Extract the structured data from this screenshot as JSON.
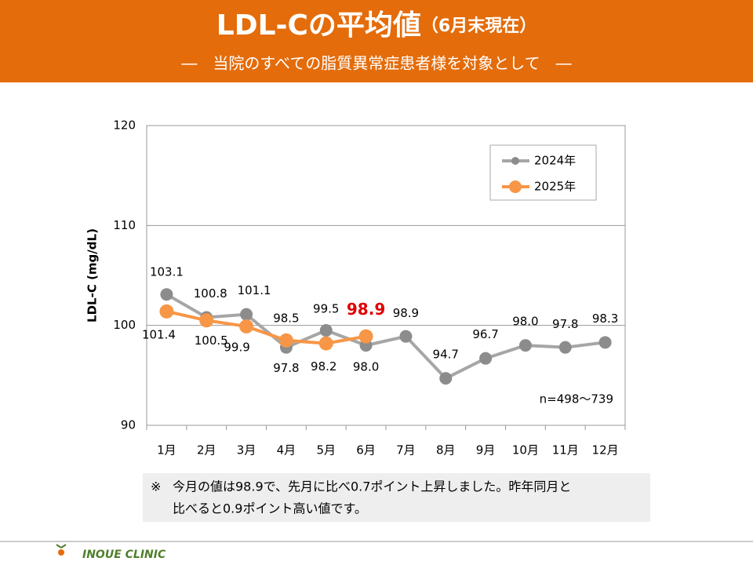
{
  "title": "LDL-Cの平均値",
  "title_note": "（6月末現在）",
  "subtitle": "―　当院のすべての脂質異常症患者様を対象として　―",
  "chart_data": {
    "type": "line",
    "ylabel": "LDL-C (mg/dL)",
    "categories": [
      "1月",
      "2月",
      "3月",
      "4月",
      "5月",
      "6月",
      "7月",
      "8月",
      "9月",
      "10月",
      "11月",
      "12月"
    ],
    "series": [
      {
        "name": "2024年",
        "color": "#a6a6a6",
        "marker_color": "#8c8c8c",
        "values": [
          103.1,
          100.8,
          101.1,
          97.8,
          99.5,
          98.0,
          98.9,
          94.7,
          96.7,
          98.0,
          97.8,
          98.3
        ],
        "value_labels": [
          "103.1",
          "100.8",
          "101.1",
          "97.8",
          "99.5",
          "98.0",
          "98.9",
          "94.7",
          "96.7",
          "98.0",
          "97.8",
          "98.3"
        ]
      },
      {
        "name": "2025年",
        "color": "#f79646",
        "marker_color": "#f79646",
        "values": [
          101.4,
          100.5,
          99.9,
          98.5,
          98.2,
          98.9,
          null,
          null,
          null,
          null,
          null,
          null
        ],
        "value_labels": [
          "101.4",
          "100.5",
          "99.9",
          "98.5",
          "98.2",
          "98.9",
          null,
          null,
          null,
          null,
          null,
          null
        ]
      }
    ],
    "ylim": [
      90,
      120
    ],
    "yticks": [
      90,
      100,
      110,
      120
    ],
    "grid": true,
    "legend": "upper right",
    "annotation": "n=498～739"
  },
  "note": {
    "mark": "※",
    "lines": [
      "今月の値は98.9で、先月に比べ0.7ポイント上昇しました。昨年同月と",
      "比べると0.9ポイント高い値です。"
    ]
  },
  "footer": "INOUE CLINIC"
}
